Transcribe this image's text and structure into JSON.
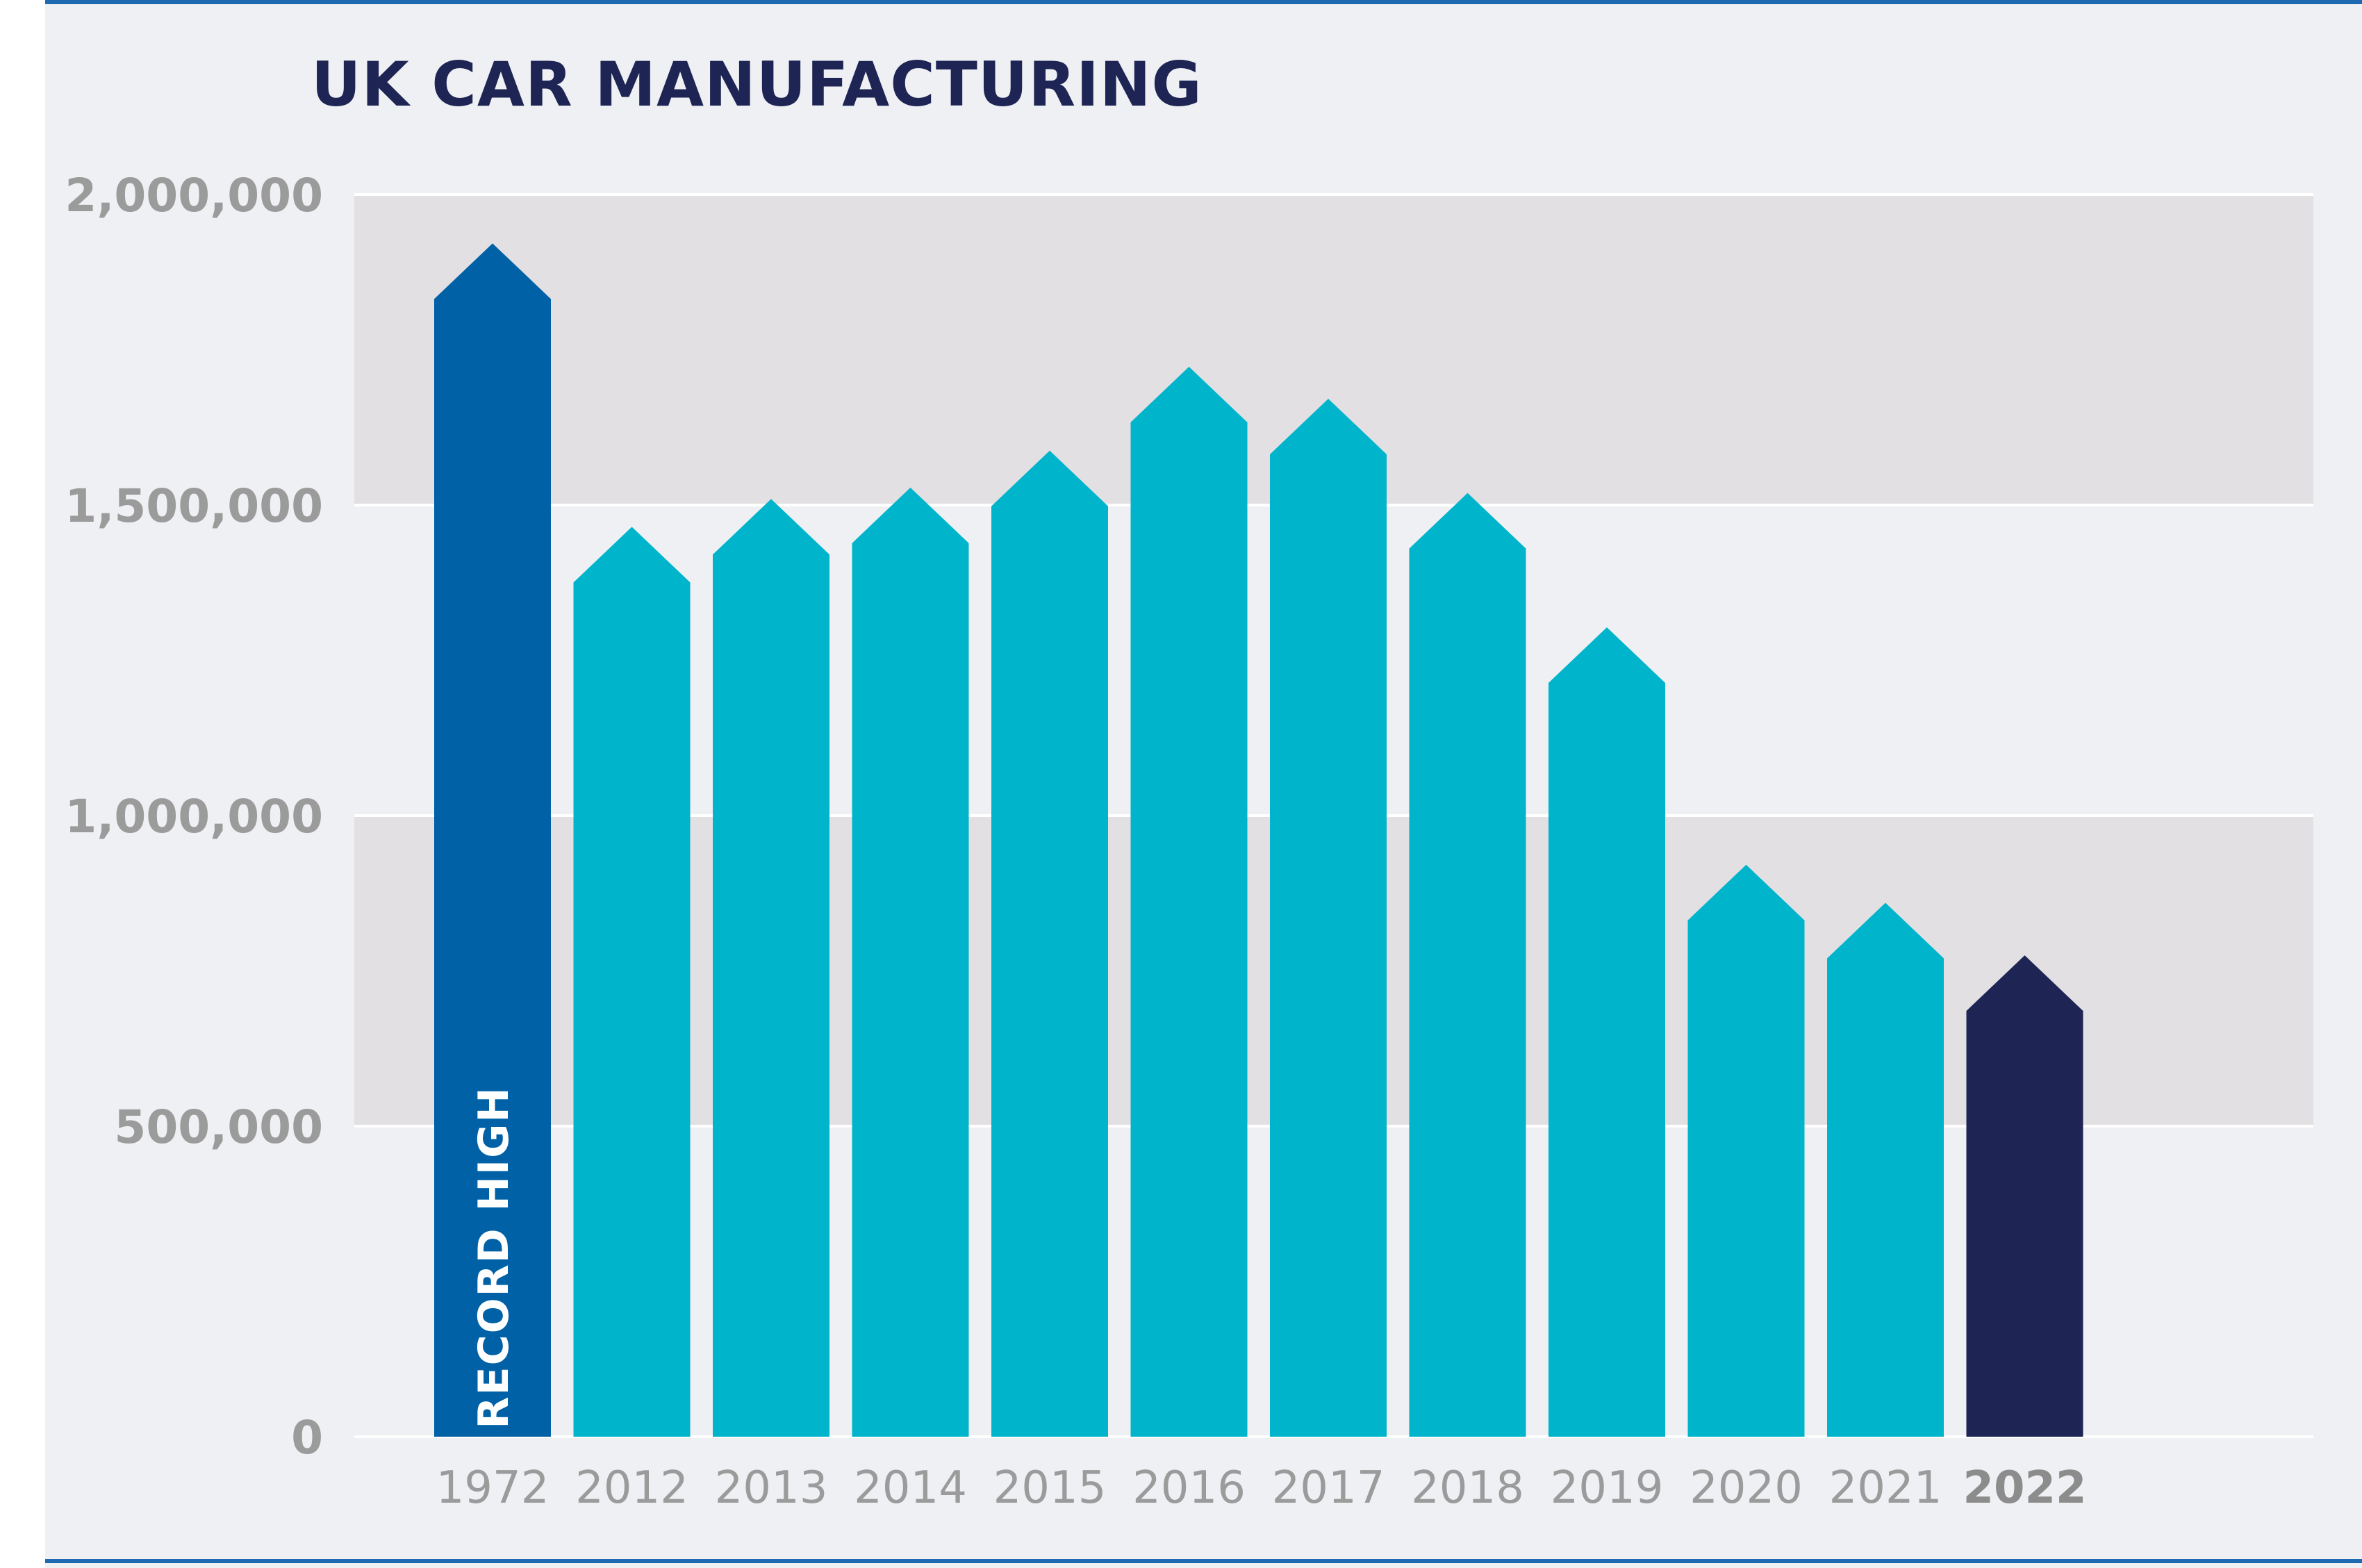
{
  "chart_data": {
    "type": "bar",
    "title": "UK CAR MANUFACTURING",
    "categories": [
      "1972",
      "2012",
      "2013",
      "2014",
      "2015",
      "2016",
      "2017",
      "2018",
      "2019",
      "2020",
      "2021",
      "2022"
    ],
    "values": [
      1921311,
      1464906,
      1509762,
      1528148,
      1587677,
      1722698,
      1671166,
      1519440,
      1303135,
      920928,
      859575,
      775014
    ],
    "ylim": [
      0,
      2000000
    ],
    "yticks": [
      0,
      500000,
      1000000,
      1500000,
      2000000
    ],
    "ytick_labels": [
      "0",
      "500,000",
      "1,000,000",
      "1,500,000",
      "2,000,000"
    ],
    "xlabel": "",
    "ylabel": "",
    "grid": true,
    "legend": "none",
    "annotation": "RECORD HIGH",
    "colors": {
      "record": "#0061a6",
      "default": "#00b4cb",
      "latest": "#1e2554",
      "band": "#e2e0e2",
      "background": "#eef0f3",
      "rule": "#1d6ab3"
    }
  }
}
